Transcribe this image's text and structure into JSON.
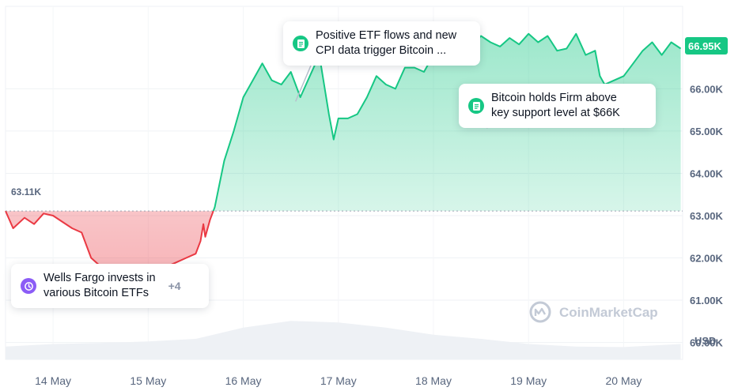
{
  "chart_data": {
    "type": "area",
    "currency_label": "USD",
    "current_price_label": "66.95K",
    "open_price_label": "63.11K",
    "baseline": 63110,
    "ylim": [
      59600,
      67950
    ],
    "yticks": [
      {
        "value": 60000,
        "label": "60.00K"
      },
      {
        "value": 61000,
        "label": "61.00K"
      },
      {
        "value": 62000,
        "label": "62.00K"
      },
      {
        "value": 63000,
        "label": "63.00K"
      },
      {
        "value": 64000,
        "label": "64.00K"
      },
      {
        "value": 65000,
        "label": "65.00K"
      },
      {
        "value": 66000,
        "label": "66.00K"
      }
    ],
    "xlim": [
      -0.5,
      6.62
    ],
    "xticks": [
      {
        "value": 0,
        "label": "14 May"
      },
      {
        "value": 1,
        "label": "15 May"
      },
      {
        "value": 2,
        "label": "16 May"
      },
      {
        "value": 3,
        "label": "17 May"
      },
      {
        "value": 4,
        "label": "18 May"
      },
      {
        "value": 5,
        "label": "19 May"
      },
      {
        "value": 6,
        "label": "20 May"
      }
    ],
    "series": [
      {
        "x": [
          -0.5,
          -0.42,
          -0.3,
          -0.2,
          -0.1,
          0.0,
          0.1,
          0.2,
          0.3,
          0.35,
          0.4,
          0.5,
          0.6,
          0.7,
          0.78,
          0.85,
          0.9,
          1.0,
          1.1,
          1.2,
          1.3,
          1.4,
          1.5,
          1.55,
          1.58,
          1.6,
          1.65,
          1.7,
          1.8,
          1.9,
          2.0,
          2.1,
          2.2,
          2.3,
          2.4,
          2.5,
          2.6,
          2.7,
          2.8,
          2.9,
          2.95,
          3.0,
          3.1,
          3.2,
          3.3,
          3.4,
          3.5,
          3.6,
          3.7,
          3.8,
          3.9,
          4.0,
          4.1,
          4.2,
          4.3,
          4.4,
          4.5,
          4.6,
          4.7,
          4.8,
          4.9,
          5.0,
          5.1,
          5.2,
          5.3,
          5.4,
          5.5,
          5.6,
          5.7,
          5.75,
          5.8,
          5.9,
          6.0,
          6.1,
          6.2,
          6.3,
          6.4,
          6.5,
          6.6
        ],
        "values": [
          63110,
          62700,
          62950,
          62800,
          63050,
          63000,
          62850,
          62700,
          62600,
          62300,
          62000,
          61800,
          61600,
          61700,
          61200,
          61500,
          61400,
          61300,
          61500,
          61800,
          61900,
          62000,
          62100,
          62400,
          62800,
          62500,
          62900,
          63200,
          64300,
          65000,
          65800,
          66200,
          66600,
          66200,
          66100,
          66400,
          65800,
          66300,
          66800,
          65400,
          64800,
          65300,
          65300,
          65400,
          65800,
          66300,
          66100,
          66000,
          66500,
          66500,
          66400,
          66800,
          67000,
          67200,
          67100,
          67000,
          67250,
          67100,
          67000,
          67200,
          67050,
          67300,
          67100,
          67250,
          66900,
          66950,
          67300,
          66800,
          66900,
          66300,
          66100,
          66200,
          66300,
          66600,
          66900,
          67100,
          66800,
          67100,
          66950
        ]
      }
    ],
    "volume": {
      "x": [
        -0.5,
        0.0,
        0.5,
        1.0,
        1.5,
        2.0,
        2.5,
        3.0,
        3.5,
        4.0,
        4.5,
        5.0,
        5.5,
        6.0,
        6.6
      ],
      "values": [
        0.25,
        0.3,
        0.32,
        0.35,
        0.4,
        0.62,
        0.75,
        0.72,
        0.62,
        0.48,
        0.4,
        0.3,
        0.25,
        0.24,
        0.3
      ]
    },
    "annotations": [
      {
        "name": "callout-etf-flows",
        "text": "Positive ETF flows and new\nCPI data trigger Bitcoin ...",
        "icon": "news-icon",
        "color": "#16c784",
        "x": 2.55,
        "y": 65700
      },
      {
        "name": "callout-support",
        "text": "Bitcoin holds Firm above\nkey support level at $66K",
        "icon": "news-icon",
        "color": "#16c784",
        "x": 5.8,
        "y": 66100
      },
      {
        "name": "callout-wells-fargo",
        "text": "Wells Fargo invests in\nvarious Bitcoin ETFs",
        "icon": "history-icon",
        "color": "#8b5cf6",
        "more": "+4"
      }
    ],
    "colors": {
      "up": "#16c784",
      "down": "#ea3943",
      "grid": "#eff2f5",
      "axis_text": "#58667e"
    }
  },
  "watermark": "CoinMarketCap"
}
